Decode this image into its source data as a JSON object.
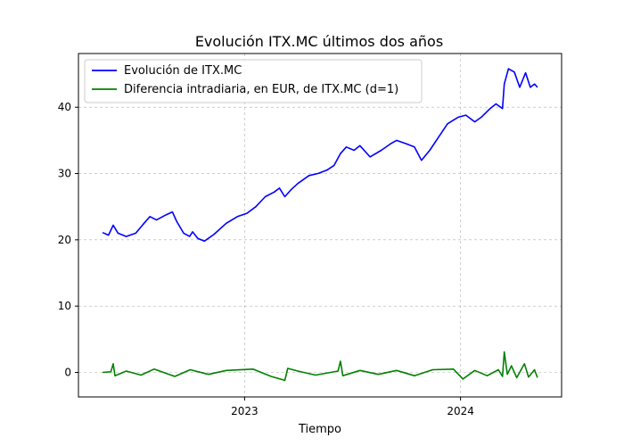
{
  "chart_data": {
    "type": "line",
    "title": "Evolución ITX.MC últimos dos años",
    "xlabel": "Tiempo",
    "ylabel": "",
    "x_range": [
      "2022-05-06",
      "2024-05-10"
    ],
    "x_ticks": [
      {
        "date": "2023-01-01",
        "label": "2023"
      },
      {
        "date": "2024-01-01",
        "label": "2024"
      }
    ],
    "ylim": [
      -3.7,
      48.1
    ],
    "y_ticks": [
      0,
      10,
      20,
      30,
      40
    ],
    "grid": true,
    "legend_position": "top-left",
    "series": [
      {
        "name": "Evolución de ITX.MC",
        "color": "#0000ff",
        "points": [
          [
            "2022-05-06",
            21.1
          ],
          [
            "2022-05-16",
            20.7
          ],
          [
            "2022-05-24",
            22.2
          ],
          [
            "2022-06-01",
            21.0
          ],
          [
            "2022-06-15",
            20.5
          ],
          [
            "2022-07-01",
            21.0
          ],
          [
            "2022-07-15",
            22.5
          ],
          [
            "2022-07-25",
            23.5
          ],
          [
            "2022-08-05",
            23.0
          ],
          [
            "2022-08-22",
            23.8
          ],
          [
            "2022-09-01",
            24.2
          ],
          [
            "2022-09-08",
            22.8
          ],
          [
            "2022-09-20",
            21.0
          ],
          [
            "2022-09-30",
            20.5
          ],
          [
            "2022-10-05",
            21.2
          ],
          [
            "2022-10-14",
            20.2
          ],
          [
            "2022-10-25",
            19.8
          ],
          [
            "2022-11-10",
            20.8
          ],
          [
            "2022-12-01",
            22.5
          ],
          [
            "2022-12-20",
            23.5
          ],
          [
            "2023-01-05",
            24.0
          ],
          [
            "2023-01-20",
            25.0
          ],
          [
            "2023-02-05",
            26.5
          ],
          [
            "2023-02-20",
            27.2
          ],
          [
            "2023-03-01",
            27.8
          ],
          [
            "2023-03-10",
            26.5
          ],
          [
            "2023-03-20",
            27.5
          ],
          [
            "2023-04-01",
            28.5
          ],
          [
            "2023-04-20",
            29.7
          ],
          [
            "2023-05-05",
            30.0
          ],
          [
            "2023-05-20",
            30.5
          ],
          [
            "2023-06-01",
            31.2
          ],
          [
            "2023-06-12",
            33.0
          ],
          [
            "2023-06-22",
            34.0
          ],
          [
            "2023-07-05",
            33.5
          ],
          [
            "2023-07-15",
            34.2
          ],
          [
            "2023-08-01",
            32.5
          ],
          [
            "2023-08-20",
            33.5
          ],
          [
            "2023-09-05",
            34.5
          ],
          [
            "2023-09-15",
            35.0
          ],
          [
            "2023-10-01",
            34.5
          ],
          [
            "2023-10-15",
            34.0
          ],
          [
            "2023-10-27",
            32.0
          ],
          [
            "2023-11-10",
            33.5
          ],
          [
            "2023-11-25",
            35.5
          ],
          [
            "2023-12-10",
            37.5
          ],
          [
            "2023-12-28",
            38.5
          ],
          [
            "2024-01-10",
            38.8
          ],
          [
            "2024-01-25",
            37.8
          ],
          [
            "2024-02-05",
            38.5
          ],
          [
            "2024-02-20",
            39.8
          ],
          [
            "2024-03-01",
            40.5
          ],
          [
            "2024-03-12",
            39.8
          ],
          [
            "2024-03-15",
            43.5
          ],
          [
            "2024-03-22",
            45.8
          ],
          [
            "2024-04-01",
            45.3
          ],
          [
            "2024-04-10",
            43.0
          ],
          [
            "2024-04-20",
            45.2
          ],
          [
            "2024-04-28",
            43.0
          ],
          [
            "2024-05-05",
            43.5
          ],
          [
            "2024-05-10",
            43.0
          ]
        ]
      },
      {
        "name": "Diferencia intradiaria, en EUR, de ITX.MC (d=1)",
        "color": "#008000",
        "points": [
          [
            "2022-05-06",
            0.0
          ],
          [
            "2022-05-20",
            0.1
          ],
          [
            "2022-05-24",
            1.3
          ],
          [
            "2022-05-27",
            -0.5
          ],
          [
            "2022-06-15",
            0.2
          ],
          [
            "2022-07-10",
            -0.4
          ],
          [
            "2022-08-01",
            0.5
          ],
          [
            "2022-09-05",
            -0.6
          ],
          [
            "2022-10-01",
            0.4
          ],
          [
            "2022-11-01",
            -0.3
          ],
          [
            "2022-12-01",
            0.3
          ],
          [
            "2023-01-15",
            0.5
          ],
          [
            "2023-02-15",
            -0.6
          ],
          [
            "2023-03-10",
            -1.2
          ],
          [
            "2023-03-15",
            0.6
          ],
          [
            "2023-04-01",
            0.2
          ],
          [
            "2023-05-01",
            -0.4
          ],
          [
            "2023-06-08",
            0.2
          ],
          [
            "2023-06-12",
            1.7
          ],
          [
            "2023-06-16",
            -0.5
          ],
          [
            "2023-07-15",
            0.3
          ],
          [
            "2023-08-15",
            -0.3
          ],
          [
            "2023-09-15",
            0.3
          ],
          [
            "2023-10-15",
            -0.5
          ],
          [
            "2023-11-15",
            0.4
          ],
          [
            "2023-12-20",
            0.5
          ],
          [
            "2024-01-05",
            -1.0
          ],
          [
            "2024-01-25",
            0.3
          ],
          [
            "2024-02-15",
            -0.5
          ],
          [
            "2024-03-05",
            0.4
          ],
          [
            "2024-03-12",
            -0.6
          ],
          [
            "2024-03-15",
            3.1
          ],
          [
            "2024-03-20",
            -0.3
          ],
          [
            "2024-03-27",
            1.0
          ],
          [
            "2024-04-05",
            -0.8
          ],
          [
            "2024-04-18",
            1.3
          ],
          [
            "2024-04-25",
            -0.7
          ],
          [
            "2024-05-05",
            0.4
          ],
          [
            "2024-05-10",
            -0.8
          ]
        ]
      }
    ]
  }
}
